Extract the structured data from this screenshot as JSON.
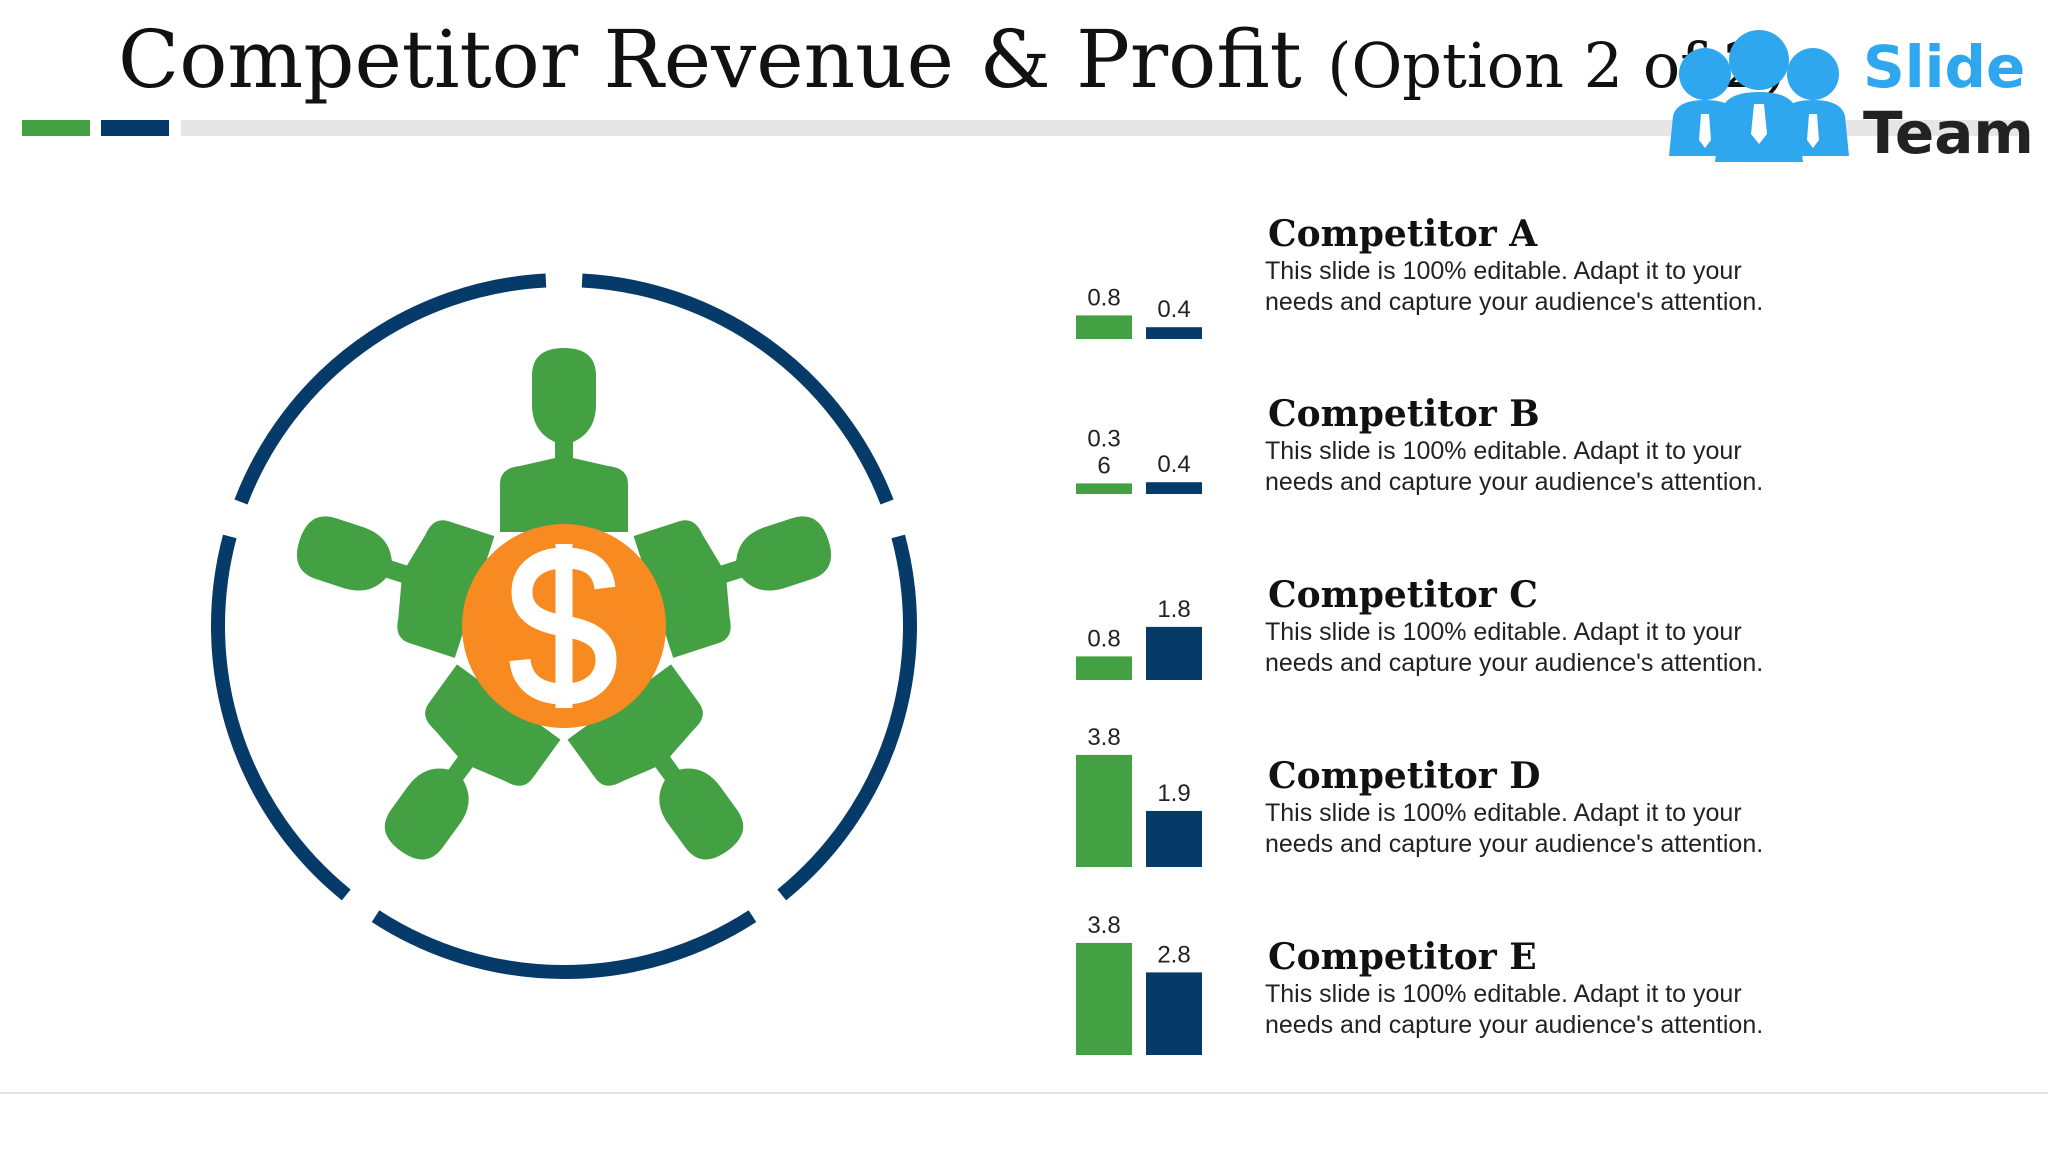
{
  "title": {
    "main": "Competitor Revenue & Profit",
    "sub": "(Option 2 of 2)"
  },
  "logo": {
    "word1": "Slide",
    "word2": "Team"
  },
  "colors": {
    "green": "#43a043",
    "navy": "#063a69",
    "orange": "#f78a21",
    "blue": "#2ea7ef"
  },
  "diagram": {
    "center_icon": "dollar-coin-icon",
    "person_icon": "person-icon"
  },
  "chart_data": {
    "type": "bar",
    "orientation": "grouped",
    "categories": [
      "Competitor A",
      "Competitor B",
      "Competitor C",
      "Competitor D",
      "Competitor E"
    ],
    "series": [
      {
        "values": [
          0.8,
          0.36,
          0.8,
          3.8,
          3.8
        ],
        "labels": [
          "0.8",
          "0.3 6",
          "0.8",
          "3.8",
          "3.8"
        ],
        "color": "#43a043"
      },
      {
        "values": [
          0.4,
          0.4,
          1.8,
          1.9,
          2.8
        ],
        "labels": [
          "0.4",
          "0.4",
          "1.8",
          "1.9",
          "2.8"
        ],
        "color": "#063a69"
      }
    ]
  },
  "competitors": [
    {
      "name": "Competitor A",
      "description": "This slide is 100% editable. Adapt it to your needs and capture your audience's attention."
    },
    {
      "name": "Competitor B",
      "description": "This slide is 100% editable. Adapt it to your needs and capture your audience's attention."
    },
    {
      "name": "Competitor C",
      "description": "This slide is 100% editable. Adapt it to your needs and capture your audience's attention."
    },
    {
      "name": "Competitor D",
      "description": "This slide is 100% editable. Adapt it to your needs and capture your audience's attention."
    },
    {
      "name": "Competitor E",
      "description": "This slide is 100% editable. Adapt it to your needs and capture your audience's attention."
    }
  ]
}
